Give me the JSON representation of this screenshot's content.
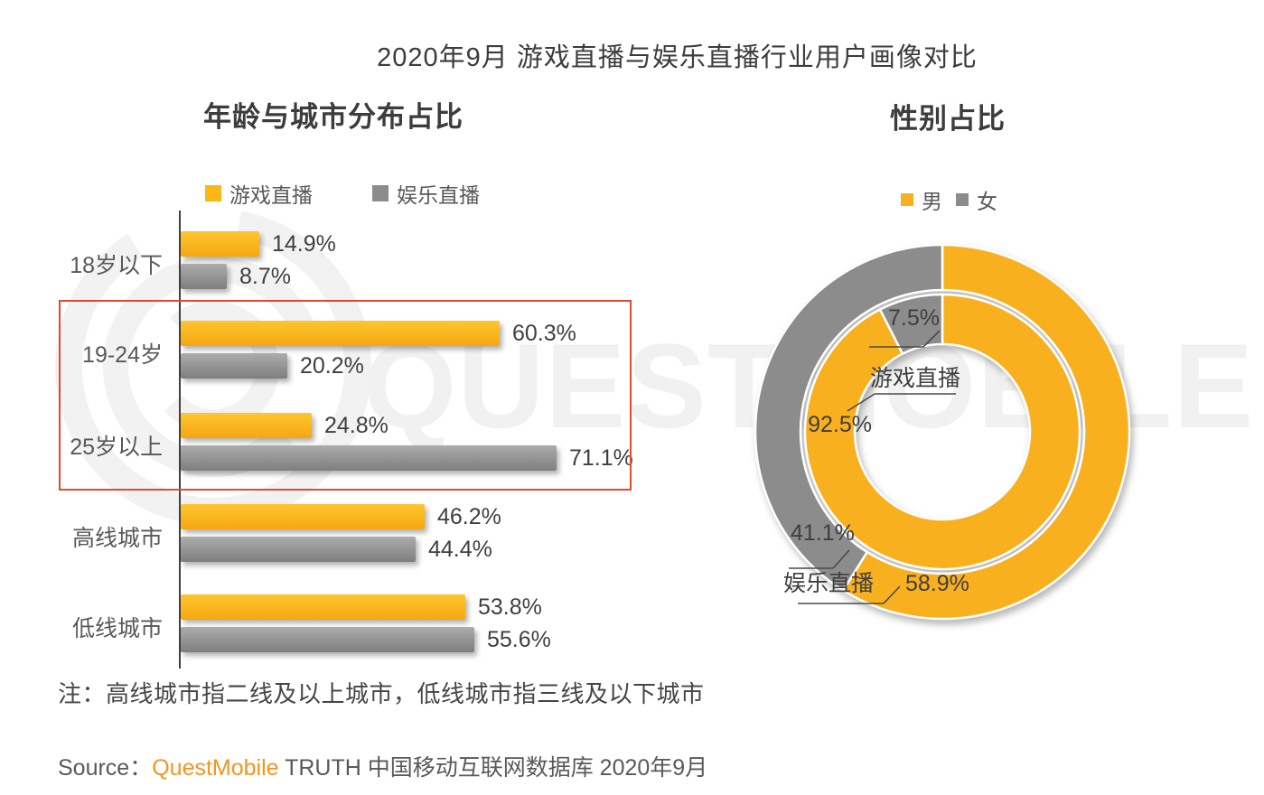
{
  "page": {
    "title": "2020年9月 游戏直播与娱乐直播行业用户画像对比"
  },
  "watermark": {
    "text": "QUESTMOBILE"
  },
  "note": "注：高线城市指二线及以上城市，低线城市指三线及以下城市",
  "source": {
    "prefix": "Source：",
    "brand": "QuestMobile",
    "suffix": " TRUTH 中国移动互联网数据库 2020年9月"
  },
  "colors": {
    "yellow": "#F9B01E",
    "gray": "#8C8C8C",
    "bar_yellow_top": "#FEC62F",
    "bar_yellow_bottom": "#F5A711",
    "bar_gray_top": "#ACACAC",
    "bar_gray_bottom": "#7E7E7E",
    "legend_yellow": "#FDB714",
    "legend_gray": "#8C8C8C",
    "highlight_red": "#E34A2B",
    "brand_orange": "#F7941D"
  },
  "chart_data": [
    {
      "type": "bar",
      "orientation": "horizontal",
      "title": "年龄与城市分布占比",
      "unit": "%",
      "categories": [
        "18岁以下",
        "19-24岁",
        "25岁以上",
        "高线城市",
        "低线城市"
      ],
      "series": [
        {
          "name": "游戏直播",
          "color": "#FDB714",
          "values": [
            14.9,
            60.3,
            24.8,
            46.2,
            53.8
          ]
        },
        {
          "name": "娱乐直播",
          "color": "#8C8C8C",
          "values": [
            8.7,
            20.2,
            71.1,
            44.4,
            55.6
          ]
        }
      ],
      "xlim": [
        0,
        75
      ],
      "grid": false,
      "highlighted_categories": [
        "19-24岁",
        "25岁以上"
      ],
      "legend_position": "top"
    },
    {
      "type": "pie",
      "subtype": "double-donut",
      "title": "性别占比",
      "unit": "%",
      "legend": [
        {
          "label": "男",
          "color": "#F9B01E"
        },
        {
          "label": "女",
          "color": "#8C8C8C"
        }
      ],
      "rings": [
        {
          "name": "游戏直播",
          "position": "inner",
          "slices": [
            {
              "label": "男",
              "value": 92.5
            },
            {
              "label": "女",
              "value": 7.5
            }
          ]
        },
        {
          "name": "娱乐直播",
          "position": "outer",
          "slices": [
            {
              "label": "男",
              "value": 58.9
            },
            {
              "label": "女",
              "value": 41.1
            }
          ]
        }
      ],
      "legend_position": "top"
    }
  ]
}
